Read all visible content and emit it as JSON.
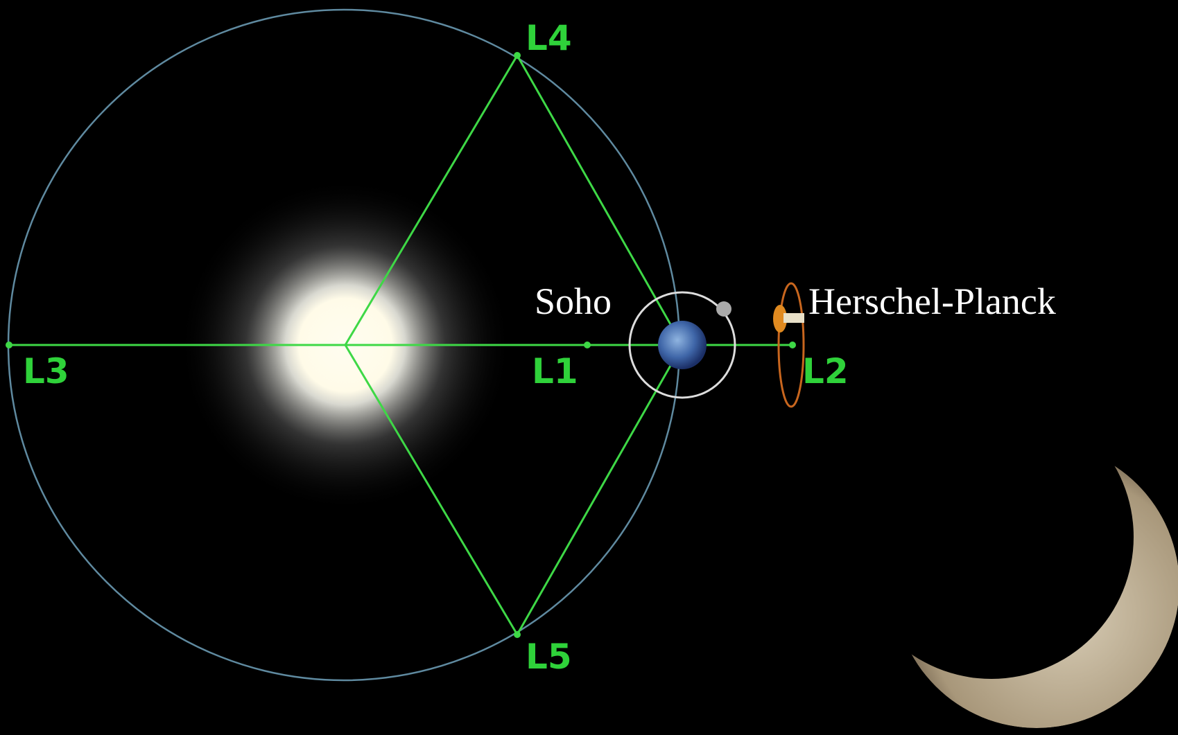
{
  "points": {
    "L1": "L1",
    "L2": "L2",
    "L3": "L3",
    "L4": "L4",
    "L5": "L5"
  },
  "spacecraft": {
    "soho": "Soho",
    "herschel_planck": "Herschel-Planck"
  }
}
